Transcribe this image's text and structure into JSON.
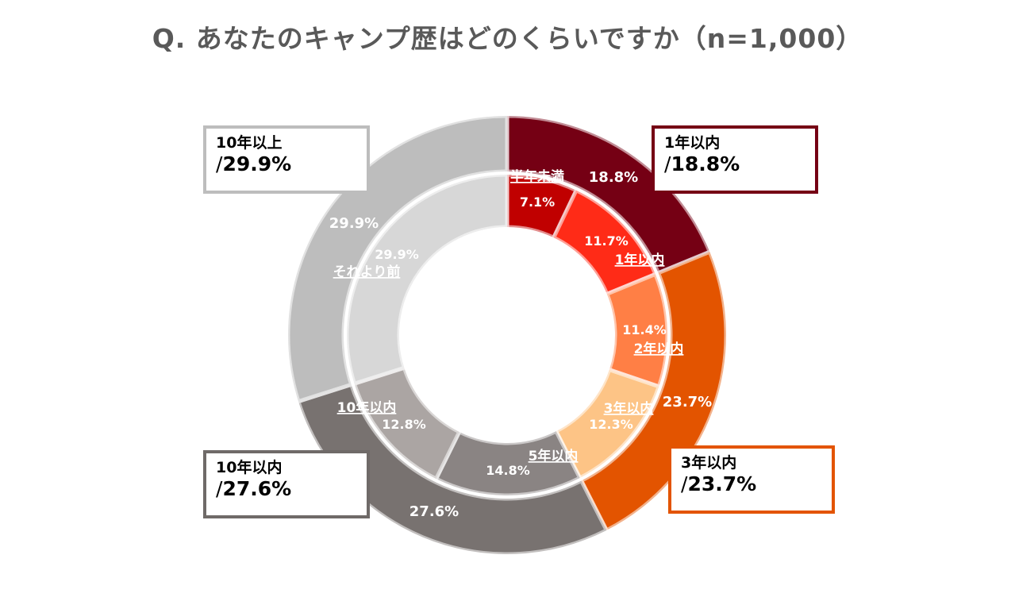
{
  "title": "Q. あなたのキャンプ歴はどのくらいですか（n=1,000）",
  "colors": {
    "ring_border": "#ffffff",
    "outer_within_1yr": "#750014",
    "outer_within_3yr": "#e35400",
    "outer_within_10yr": "#787270",
    "outer_over_10yr": "#bdbdbd",
    "inner_half_year": "#c00000",
    "inner_1yr": "#ff2b17",
    "inner_2yr": "#ff7f45",
    "inner_3yr": "#fdc486",
    "inner_5yr": "#8a8483",
    "inner_10yr": "#aba5a3",
    "inner_before": "#d7d7d7"
  },
  "chart_data": {
    "type": "donut",
    "title": "Q. あなたのキャンプ歴はどのくらいですか（n=1,000）",
    "unit": "%",
    "outer_ring": [
      {
        "name": "1年以内",
        "value": 18.8,
        "label": "18.8%",
        "color_key": "outer_within_1yr"
      },
      {
        "name": "3年以内",
        "value": 23.7,
        "label": "23.7%",
        "color_key": "outer_within_3yr"
      },
      {
        "name": "10年以内",
        "value": 27.6,
        "label": "27.6%",
        "color_key": "outer_within_10yr"
      },
      {
        "name": "10年以上",
        "value": 29.9,
        "label": "29.9%",
        "color_key": "outer_over_10yr"
      }
    ],
    "inner_ring": [
      {
        "name": "半年未満",
        "value": 7.1,
        "label": "7.1%",
        "color_key": "inner_half_year"
      },
      {
        "name": "1年以内",
        "value": 11.7,
        "label": "11.7%",
        "color_key": "inner_1yr"
      },
      {
        "name": "2年以内",
        "value": 11.4,
        "label": "11.4%",
        "color_key": "inner_2yr"
      },
      {
        "name": "3年以内",
        "value": 12.3,
        "label": "12.3%",
        "color_key": "inner_3yr"
      },
      {
        "name": "5年以内",
        "value": 14.8,
        "label": "14.8%",
        "color_key": "inner_5yr"
      },
      {
        "name": "10年以内",
        "value": 12.8,
        "label": "12.8%",
        "color_key": "inner_10yr"
      },
      {
        "name": "それより前",
        "value": 29.9,
        "label": "29.9%",
        "color_key": "inner_before"
      }
    ],
    "callouts": [
      {
        "name": "10年以上",
        "value": "29.9%",
        "color": "#bdbdbd"
      },
      {
        "name": "1年以内",
        "value": "18.8%",
        "color": "#750014"
      },
      {
        "name": "10年以内",
        "value": "27.6%",
        "color": "#6f6a68"
      },
      {
        "name": "3年以内",
        "value": "23.7%",
        "color": "#e35400"
      }
    ]
  }
}
